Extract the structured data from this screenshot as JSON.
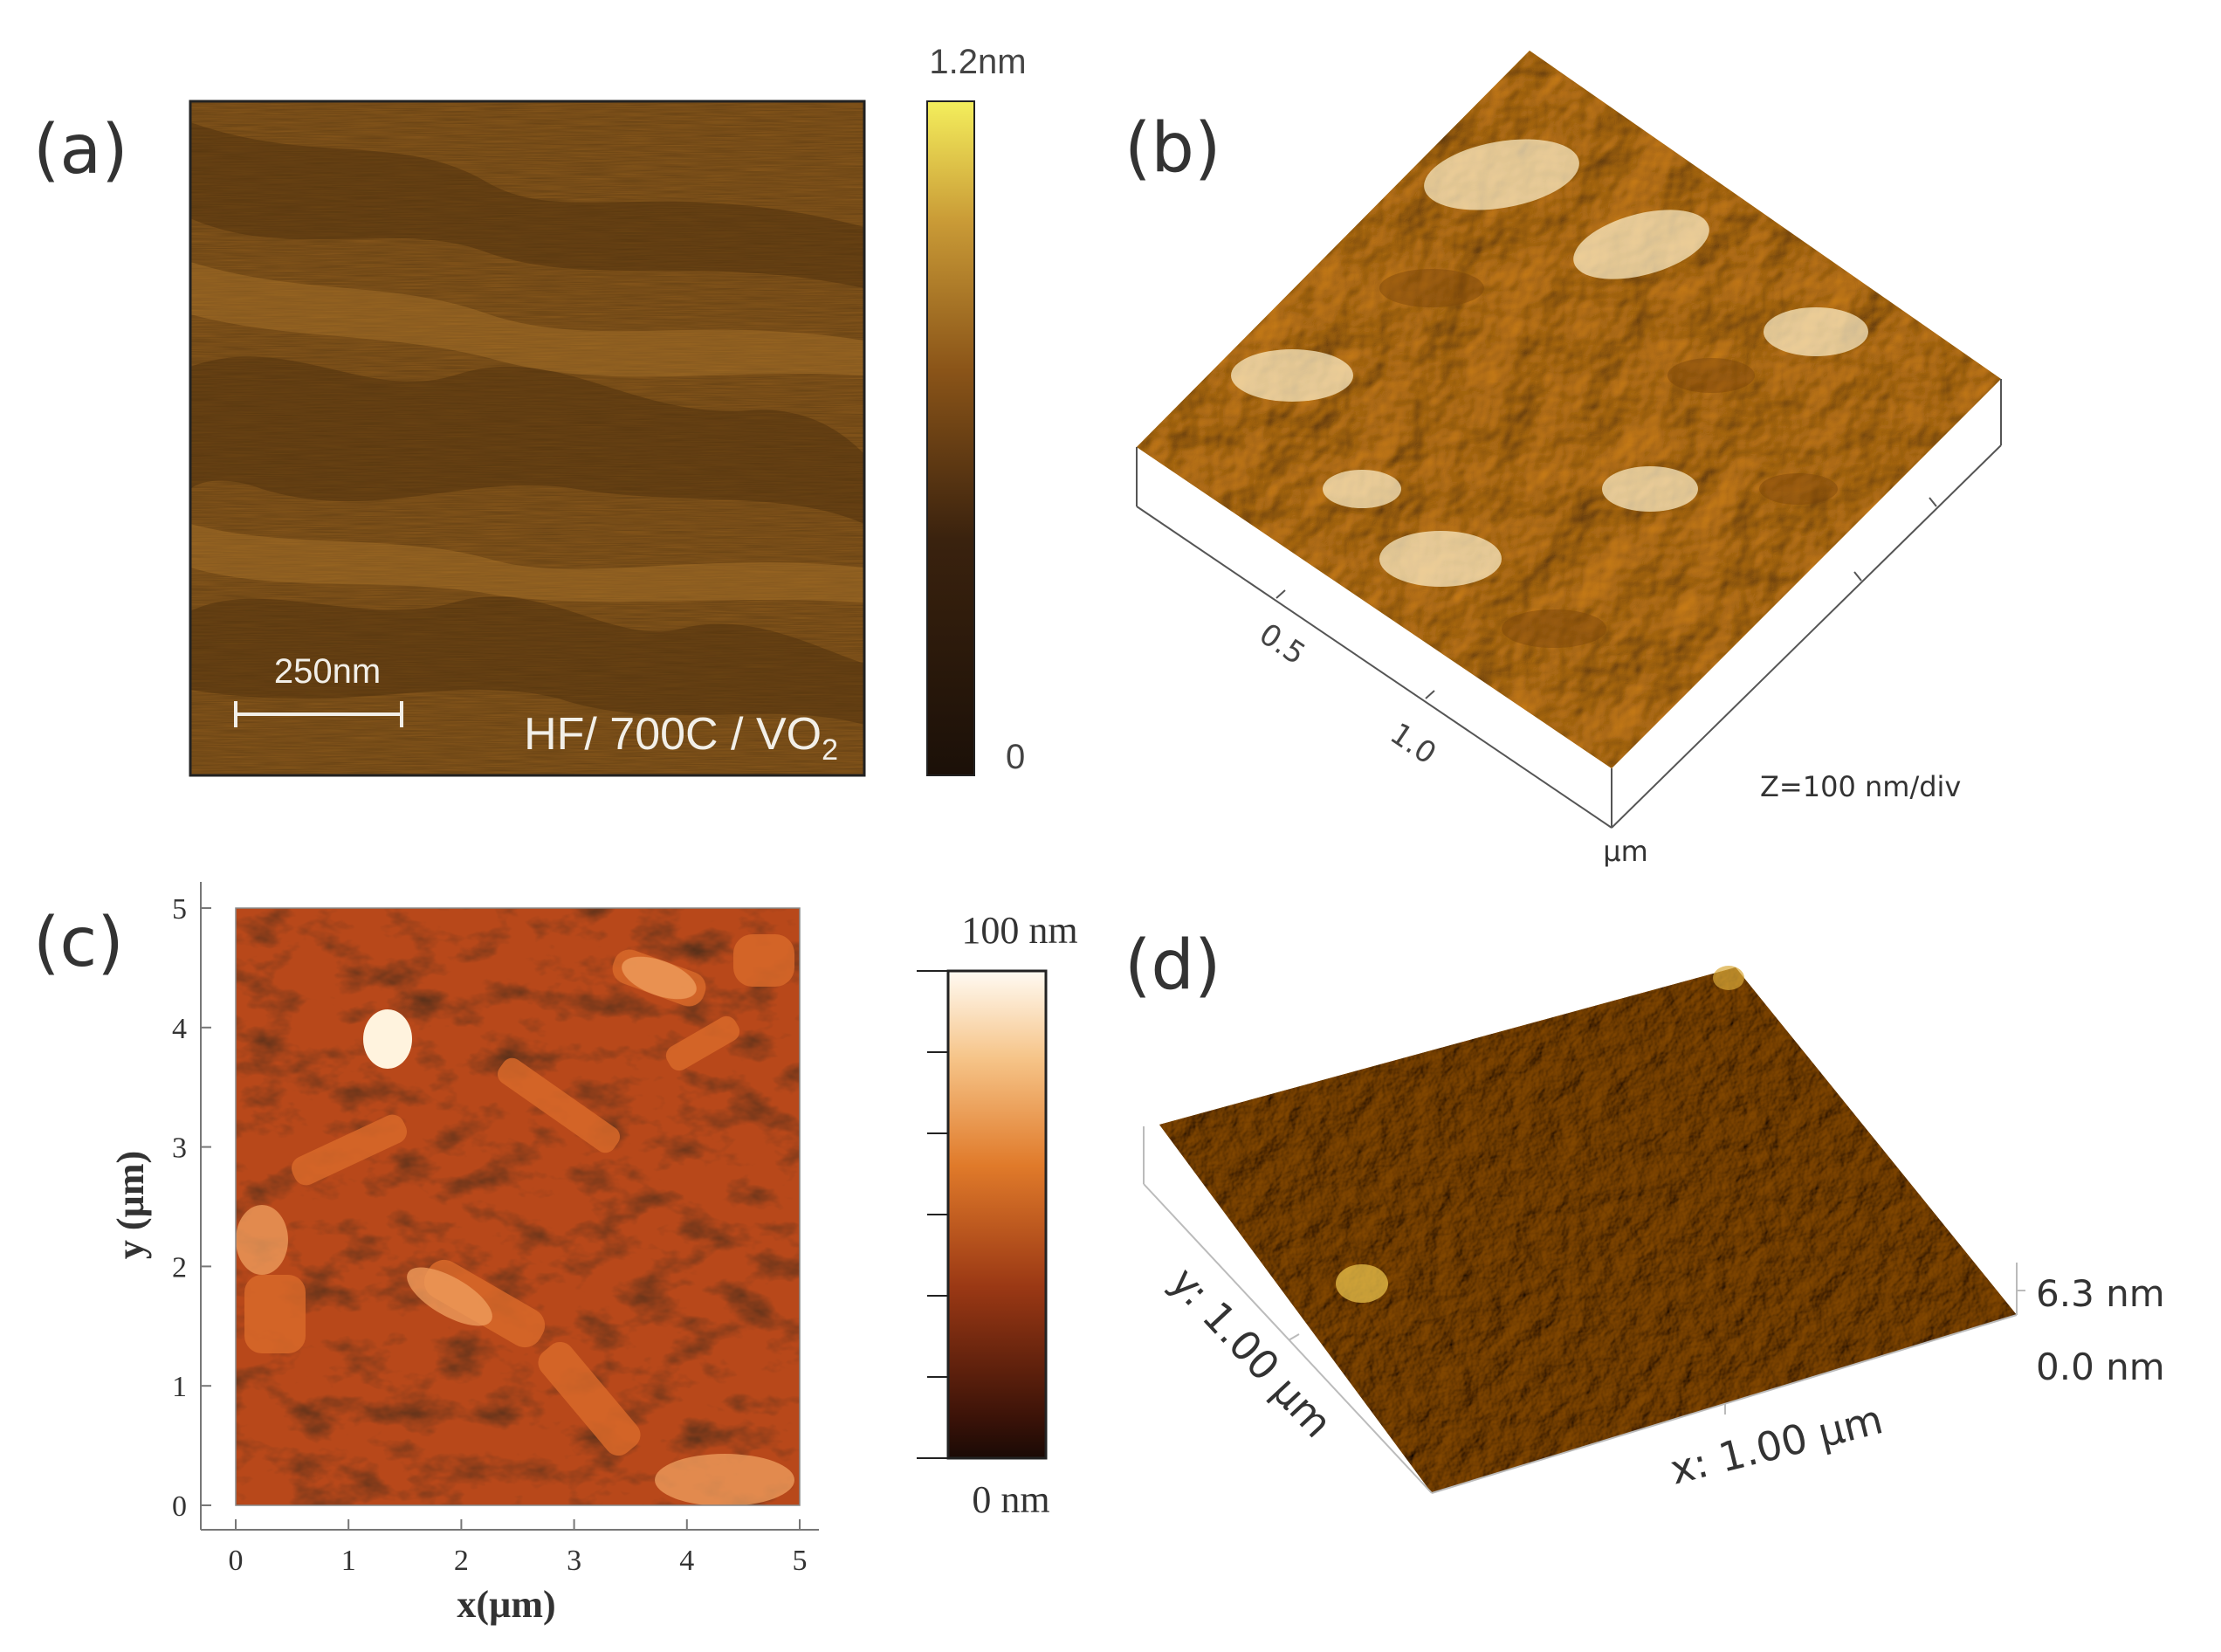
{
  "figure": {
    "panel_a": {
      "label": "(a)",
      "scale_bar_text": "250nm",
      "sample_label_main": "HF/ 700C / VO",
      "sample_label_sub": "2",
      "colorbar_max": "1.2nm",
      "colorbar_min": "0",
      "colors": [
        "#1b1008",
        "#5a3410",
        "#a56a1e",
        "#d9b24a",
        "#f4ee5c"
      ]
    },
    "panel_b": {
      "label": "(b)",
      "tick_labels": [
        "0.5",
        "1.0"
      ],
      "unit": "µm",
      "z_scale": "Z=100 nm/div",
      "colors": [
        "#6b3a06",
        "#c9861e",
        "#f5d27a",
        "#fff6dc"
      ]
    },
    "panel_c": {
      "label": "(c)",
      "x_ticks": [
        "0",
        "1",
        "2",
        "3",
        "4",
        "5"
      ],
      "y_ticks": [
        "0",
        "1",
        "2",
        "3",
        "4",
        "5"
      ],
      "x_axis_label": "x(µm)",
      "y_axis_label": "y (µm)",
      "colorbar_max": "100 nm",
      "colorbar_min": "0 nm",
      "colors": [
        "#1a0a05",
        "#5a1a08",
        "#b8461a",
        "#e8903a",
        "#fff8f0"
      ]
    },
    "panel_d": {
      "label": "(d)",
      "y_label": "y: 1.00 µm",
      "x_label": "x: 1.00 µm",
      "z_max": "6.3 nm",
      "z_min": "0.0 nm",
      "colors": [
        "#3a2408",
        "#7a5214",
        "#b8881e",
        "#e8c04a"
      ]
    }
  }
}
